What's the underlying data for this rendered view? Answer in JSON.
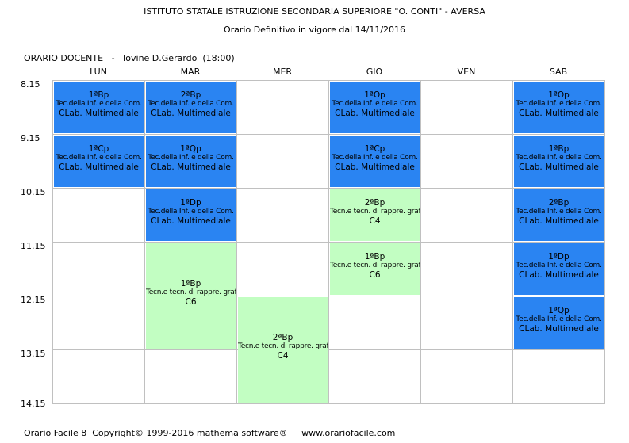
{
  "header": {
    "school": "ISTITUTO STATALE ISTRUZIONE SECONDARIA SUPERIORE \"O. CONTI\" - AVERSA",
    "schedule": "Orario Definitivo in vigore dal 14/11/2016"
  },
  "teacher_label": "ORARIO DOCENTE   -   Iovine D.Gerardo  (18:00)",
  "days": [
    "LUN",
    "MAR",
    "MER",
    "GIO",
    "VEN",
    "SAB"
  ],
  "times": [
    "8.15",
    "9.15",
    "10.15",
    "11.15",
    "12.15",
    "13.15",
    "14.15"
  ],
  "colors": {
    "lab": "#2a84f2",
    "drawing": "#c2fec2",
    "grid": "#c0c0c0"
  },
  "lessons": [
    {
      "day": 0,
      "start": 0,
      "span": 1,
      "type": "lab",
      "cls": "1ªBp",
      "subject": "Tec.della Inf. e della Com.",
      "room": "CLab. Multimediale"
    },
    {
      "day": 0,
      "start": 1,
      "span": 1,
      "type": "lab",
      "cls": "1ªCp",
      "subject": "Tec.della Inf. e della Com.",
      "room": "CLab. Multimediale"
    },
    {
      "day": 1,
      "start": 0,
      "span": 1,
      "type": "lab",
      "cls": "2ªBp",
      "subject": "Tec.della Inf. e della Com.",
      "room": "CLab. Multimediale"
    },
    {
      "day": 1,
      "start": 1,
      "span": 1,
      "type": "lab",
      "cls": "1ªQp",
      "subject": "Tec.della Inf. e della Com.",
      "room": "CLab. Multimediale"
    },
    {
      "day": 1,
      "start": 2,
      "span": 1,
      "type": "lab",
      "cls": "1ªDp",
      "subject": "Tec.della Inf. e della Com.",
      "room": "CLab. Multimediale"
    },
    {
      "day": 1,
      "start": 3,
      "span": 2,
      "type": "drawing",
      "cls": "1ªBp",
      "subject": "Tecn.e tecn. di rappre. graf.",
      "room": "C6"
    },
    {
      "day": 2,
      "start": 4,
      "span": 2,
      "type": "drawing",
      "cls": "2ªBp",
      "subject": "Tecn.e tecn. di rappre. graf.",
      "room": "C4"
    },
    {
      "day": 3,
      "start": 0,
      "span": 1,
      "type": "lab",
      "cls": "1ªOp",
      "subject": "Tec.della Inf. e della Com.",
      "room": "CLab. Multimediale"
    },
    {
      "day": 3,
      "start": 1,
      "span": 1,
      "type": "lab",
      "cls": "1ªCp",
      "subject": "Tec.della Inf. e della Com.",
      "room": "CLab. Multimediale"
    },
    {
      "day": 3,
      "start": 2,
      "span": 1,
      "type": "drawing",
      "cls": "2ªBp",
      "subject": "Tecn.e tecn. di rappre. graf.",
      "room": "C4"
    },
    {
      "day": 3,
      "start": 3,
      "span": 1,
      "type": "drawing",
      "cls": "1ªBp",
      "subject": "Tecn.e tecn. di rappre. graf.",
      "room": "C6"
    },
    {
      "day": 5,
      "start": 0,
      "span": 1,
      "type": "lab",
      "cls": "1ªOp",
      "subject": "Tec.della Inf. e della Com.",
      "room": "CLab. Multimediale"
    },
    {
      "day": 5,
      "start": 1,
      "span": 1,
      "type": "lab",
      "cls": "1ªBp",
      "subject": "Tec.della Inf. e della Com.",
      "room": "CLab. Multimediale"
    },
    {
      "day": 5,
      "start": 2,
      "span": 1,
      "type": "lab",
      "cls": "2ªBp",
      "subject": "Tec.della Inf. e della Com.",
      "room": "CLab. Multimediale"
    },
    {
      "day": 5,
      "start": 3,
      "span": 1,
      "type": "lab",
      "cls": "1ªDp",
      "subject": "Tec.della Inf. e della Com.",
      "room": "CLab. Multimediale"
    },
    {
      "day": 5,
      "start": 4,
      "span": 1,
      "type": "lab",
      "cls": "1ªQp",
      "subject": "Tec.della Inf. e della Com.",
      "room": "CLab. Multimediale"
    }
  ],
  "footer": "Orario Facile 8  Copyright© 1999-2016 mathema software®     www.orariofacile.com"
}
